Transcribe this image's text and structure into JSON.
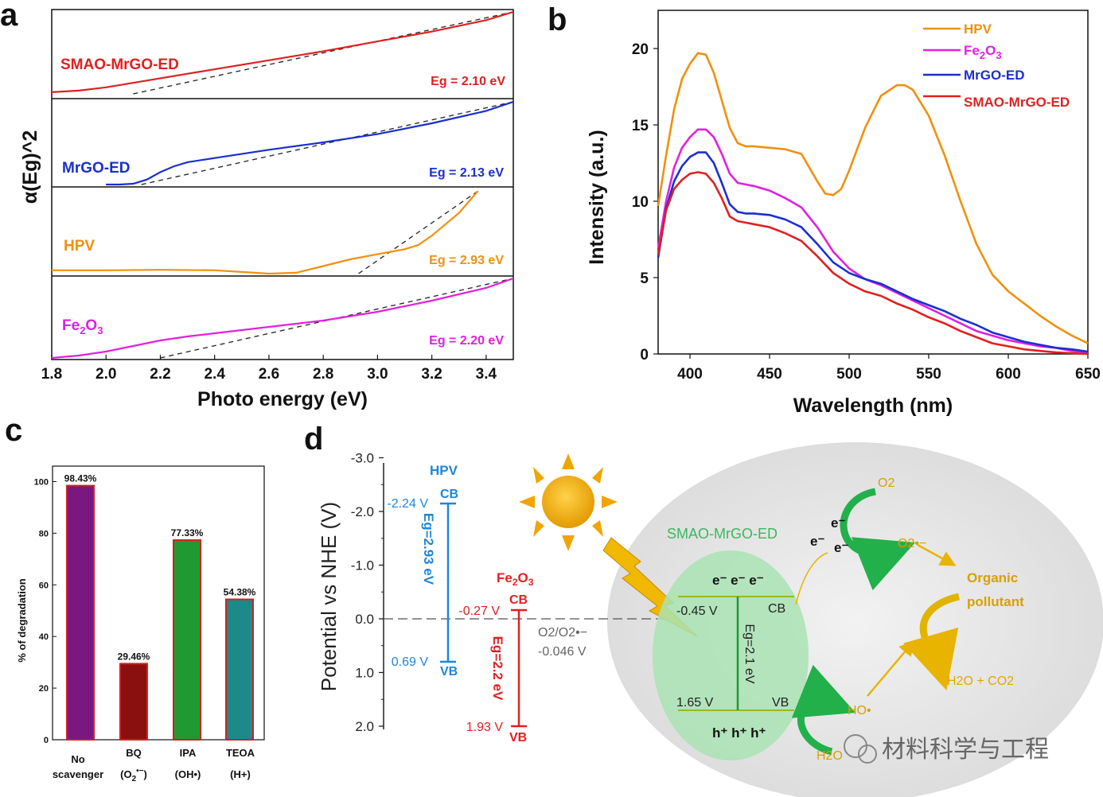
{
  "chart_data": [
    {
      "panel": "a",
      "type": "line",
      "xlabel": "Photo energy (eV)",
      "ylabel": "α(Eg)^2",
      "xlim": [
        1.8,
        3.5
      ],
      "xticks": [
        "1.8",
        "2.0",
        "2.2",
        "2.4",
        "2.6",
        "2.8",
        "3.0",
        "3.2",
        "3.4"
      ],
      "series": [
        {
          "name": "SMAO-MrGO-ED",
          "eg_label": "Eg = 2.10 eV",
          "eg": 2.1,
          "color": "#e02020",
          "x": [
            1.8,
            1.9,
            2.0,
            2.2,
            2.4,
            2.6,
            2.8,
            3.0,
            3.2,
            3.4,
            3.5
          ],
          "y": [
            0.02,
            0.04,
            0.08,
            0.19,
            0.3,
            0.41,
            0.52,
            0.64,
            0.76,
            0.9,
            1.0
          ]
        },
        {
          "name": "MrGO-ED",
          "eg_label": "Eg = 2.13 eV",
          "eg": 2.13,
          "color": "#1a2fd0",
          "x": [
            2.0,
            2.05,
            2.1,
            2.15,
            2.2,
            2.25,
            2.3,
            2.4,
            2.6,
            2.8,
            3.0,
            3.2,
            3.4,
            3.5
          ],
          "y": [
            0.0,
            0.0,
            0.01,
            0.06,
            0.15,
            0.22,
            0.27,
            0.32,
            0.42,
            0.51,
            0.61,
            0.74,
            0.89,
            1.0
          ]
        },
        {
          "name": "HPV",
          "eg_label": "Eg = 2.93 eV",
          "eg": 2.93,
          "color": "#f0900f",
          "x": [
            1.8,
            2.0,
            2.2,
            2.4,
            2.5,
            2.6,
            2.7,
            2.8,
            2.9,
            3.0,
            3.1,
            3.15,
            3.2,
            3.3,
            3.37
          ],
          "y": [
            0.04,
            0.04,
            0.045,
            0.04,
            0.02,
            0.0,
            0.01,
            0.09,
            0.17,
            0.23,
            0.29,
            0.34,
            0.45,
            0.72,
            0.98
          ]
        },
        {
          "name": "Fe2O3",
          "eg_label": "Eg = 2.20 eV",
          "eg": 2.2,
          "color": "#e020e0",
          "x": [
            1.8,
            1.9,
            2.0,
            2.1,
            2.2,
            2.3,
            2.4,
            2.6,
            2.8,
            3.0,
            3.2,
            3.4,
            3.5
          ],
          "y": [
            0.0,
            0.03,
            0.08,
            0.15,
            0.22,
            0.27,
            0.31,
            0.39,
            0.47,
            0.58,
            0.72,
            0.88,
            1.0
          ]
        }
      ]
    },
    {
      "panel": "b",
      "type": "line",
      "xlabel": "Wavelength (nm)",
      "ylabel": "Intensity (a.u.)",
      "xlim": [
        380,
        650
      ],
      "ylim": [
        0,
        22.5
      ],
      "xticks": [
        "400",
        "450",
        "500",
        "550",
        "600",
        "650"
      ],
      "yticks": [
        "0",
        "5",
        "10",
        "15",
        "20"
      ],
      "series": [
        {
          "name": "HPV",
          "color": "#f0900f",
          "x": [
            380,
            385,
            390,
            395,
            400,
            405,
            410,
            415,
            420,
            425,
            430,
            435,
            440,
            450,
            460,
            470,
            480,
            485,
            490,
            495,
            500,
            510,
            520,
            530,
            535,
            540,
            550,
            560,
            570,
            580,
            590,
            600,
            610,
            620,
            630,
            640,
            650
          ],
          "y": [
            9.7,
            13.0,
            16.0,
            18.0,
            19.0,
            19.7,
            19.6,
            18.4,
            16.6,
            14.8,
            13.8,
            13.6,
            13.6,
            13.5,
            13.4,
            13.1,
            11.3,
            10.5,
            10.4,
            10.8,
            12.0,
            14.8,
            16.9,
            17.6,
            17.6,
            17.3,
            15.6,
            13.0,
            10.0,
            7.2,
            5.2,
            4.1,
            3.3,
            2.5,
            1.8,
            1.2,
            0.7
          ]
        },
        {
          "name": "Fe2O3",
          "label_main": "Fe",
          "label_sub1": "2",
          "label_mid": "O",
          "label_sub2": "3",
          "color": "#e020e0",
          "x": [
            380,
            385,
            390,
            395,
            400,
            405,
            410,
            415,
            420,
            425,
            430,
            435,
            440,
            450,
            460,
            470,
            480,
            490,
            500,
            510,
            520,
            530,
            540,
            550,
            560,
            570,
            580,
            590,
            600,
            610,
            620,
            630,
            640,
            650
          ],
          "y": [
            6.9,
            10.0,
            12.2,
            13.5,
            14.2,
            14.7,
            14.7,
            14.2,
            13.1,
            11.8,
            11.2,
            11.1,
            11.0,
            10.7,
            10.2,
            9.6,
            8.3,
            6.7,
            5.6,
            4.9,
            4.5,
            4.0,
            3.5,
            3.0,
            2.5,
            2.0,
            1.5,
            1.2,
            0.9,
            0.7,
            0.5,
            0.4,
            0.2,
            0.1
          ]
        },
        {
          "name": "MrGO-ED",
          "color": "#1a2fd0",
          "x": [
            380,
            385,
            390,
            395,
            400,
            405,
            410,
            415,
            420,
            425,
            430,
            435,
            440,
            450,
            460,
            470,
            480,
            490,
            500,
            510,
            520,
            530,
            540,
            550,
            560,
            570,
            580,
            590,
            600,
            610,
            620,
            630,
            640,
            650
          ],
          "y": [
            6.3,
            9.5,
            11.3,
            12.3,
            12.9,
            13.2,
            13.2,
            12.5,
            11.2,
            9.8,
            9.3,
            9.2,
            9.2,
            9.1,
            8.8,
            8.3,
            7.2,
            6.0,
            5.3,
            4.9,
            4.6,
            4.1,
            3.6,
            3.2,
            2.8,
            2.3,
            1.9,
            1.4,
            1.1,
            0.8,
            0.6,
            0.4,
            0.3,
            0.15
          ]
        },
        {
          "name": "SMAO-MrGO-ED",
          "color": "#e02020",
          "x": [
            380,
            385,
            390,
            395,
            400,
            405,
            410,
            415,
            420,
            425,
            430,
            435,
            440,
            450,
            460,
            470,
            480,
            490,
            500,
            510,
            520,
            530,
            540,
            550,
            560,
            570,
            580,
            590,
            600,
            610,
            620,
            630,
            640,
            650
          ],
          "y": [
            6.5,
            9.4,
            10.8,
            11.4,
            11.8,
            11.9,
            11.8,
            11.2,
            10.2,
            9.0,
            8.7,
            8.6,
            8.5,
            8.3,
            7.9,
            7.4,
            6.4,
            5.3,
            4.6,
            4.1,
            3.8,
            3.3,
            2.9,
            2.4,
            2.0,
            1.5,
            1.1,
            0.7,
            0.5,
            0.3,
            0.2,
            0.1,
            0.05,
            0.0
          ]
        }
      ]
    },
    {
      "panel": "c",
      "type": "bar",
      "ylabel": "% of degradation",
      "ylim": [
        0,
        100
      ],
      "yticks": [
        "0",
        "20",
        "40",
        "60",
        "80",
        "100"
      ],
      "categories": [
        "No scavenger",
        "BQ (O2•−)",
        "IPA (OH•)",
        "TEOA (H+)"
      ],
      "values": [
        98.43,
        29.46,
        77.33,
        54.38
      ],
      "value_labels": [
        "98.43%",
        "29.46%",
        "77.33%",
        "54.38%"
      ],
      "colors": [
        "#7a1880",
        "#8a1010",
        "#1f9a30",
        "#1c8a88"
      ]
    }
  ],
  "panel_labels": {
    "a": "a",
    "b": "b",
    "c": "c",
    "d": "d"
  },
  "panel_c_labels": {
    "cat1_l1": "No",
    "cat1_l2": "scavenger",
    "cat2_l1": "BQ",
    "cat2_l2a": "(O",
    "cat2_l2b": "2",
    "cat2_l2c": "•−",
    "cat3_l1": "IPA",
    "cat3_l2": "(OH•)",
    "cat4_l1": "TEOA",
    "cat4_l2": "(H+)"
  },
  "panel_d": {
    "ylabel": "Potential vs NHE (V)",
    "yticks": [
      "-3.0",
      "-2.0",
      "-1.0",
      "0.0",
      "1.0",
      "2.0"
    ],
    "hpv": {
      "title": "HPV",
      "cb": "CB",
      "vb": "VB",
      "cb_val": "-2.24 V",
      "vb_val": "0.69 V",
      "eg": "Eg=2.93 eV"
    },
    "fe2o3": {
      "t1": "Fe",
      "t2": "2",
      "t3": "O",
      "t4": "3",
      "cb": "CB",
      "vb": "VB",
      "cb_val": "-0.27 V",
      "vb_val": "1.93 V",
      "eg": "Eg=2.2 eV"
    },
    "ref": {
      "l1": "O2/O2•−",
      "l2": "-0.046 V"
    },
    "composite": {
      "title": "SMAO-MrGO-ED",
      "electrons": "e⁻ e⁻ e⁻",
      "holes": "h⁺ h⁺ h⁺",
      "cb": "CB",
      "vb": "VB",
      "cb_val": "-0.45 V",
      "vb_val": "1.65 V",
      "eg": "Eg=2.1 eV"
    },
    "o2": "O2",
    "o2rad": "O2•−",
    "e": "e⁻",
    "organic1": "Organic",
    "organic2": "pollutant",
    "products": "H2O + CO2",
    "ho": "HO•",
    "h2o": "H2O"
  },
  "watermark": "材料科学与工程"
}
